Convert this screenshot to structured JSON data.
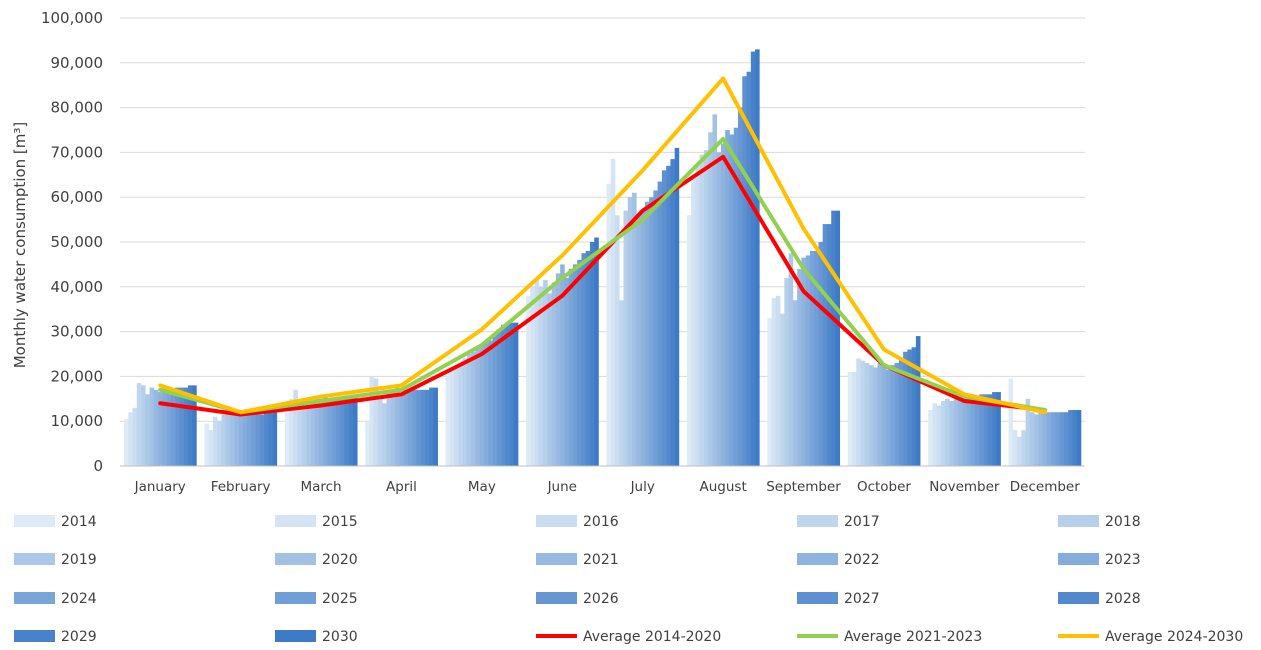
{
  "chart_data": {
    "type": "bar",
    "ylabel": "Monthly water consumption [m³]",
    "ylim": [
      0,
      100000
    ],
    "yticks": [
      "0",
      "10,000",
      "20,000",
      "30,000",
      "40,000",
      "50,000",
      "60,000",
      "70,000",
      "80,000",
      "90,000",
      "100,000"
    ],
    "grid": true,
    "legend_position": "bottom",
    "categories": [
      "January",
      "February",
      "March",
      "April",
      "May",
      "June",
      "July",
      "August",
      "September",
      "October",
      "November",
      "December"
    ],
    "bar_series": [
      {
        "name": "2014",
        "color": "#DEEBF7",
        "values": [
          10500,
          9500,
          12000,
          10200,
          21000,
          38000,
          63000,
          56000,
          33000,
          21000,
          12500,
          19500
        ]
      },
      {
        "name": "2015",
        "color": "#D4E4F4",
        "values": [
          12000,
          8000,
          15000,
          20000,
          21500,
          40000,
          68500,
          65000,
          37500,
          21000,
          14000,
          8000
        ]
      },
      {
        "name": "2016",
        "color": "#CADDF1",
        "values": [
          13000,
          11000,
          17000,
          19500,
          22000,
          42000,
          56000,
          67000,
          38000,
          24000,
          13500,
          6500
        ]
      },
      {
        "name": "2017",
        "color": "#C0D6EE",
        "values": [
          18500,
          10000,
          13000,
          15000,
          23000,
          40000,
          37000,
          69500,
          34000,
          23500,
          14500,
          8000
        ]
      },
      {
        "name": "2018",
        "color": "#B6CFEB",
        "values": [
          18000,
          11500,
          13500,
          14000,
          24000,
          41500,
          57000,
          70500,
          42000,
          23000,
          15000,
          15000
        ]
      },
      {
        "name": "2019",
        "color": "#ACC8E8",
        "values": [
          16000,
          12000,
          14000,
          16500,
          25000,
          38500,
          60000,
          74500,
          47500,
          22500,
          14500,
          12000
        ]
      },
      {
        "name": "2020",
        "color": "#A2C1E5",
        "values": [
          17500,
          12500,
          14500,
          17000,
          25500,
          41000,
          61000,
          78500,
          37000,
          22000,
          15500,
          11500
        ]
      },
      {
        "name": "2021",
        "color": "#98BAE2",
        "values": [
          17000,
          11500,
          15000,
          17500,
          26500,
          43000,
          56000,
          70000,
          44000,
          23000,
          16000,
          12000
        ]
      },
      {
        "name": "2022",
        "color": "#8EB3DF",
        "values": [
          16500,
          11500,
          15000,
          16000,
          27000,
          45000,
          57000,
          72000,
          46500,
          22500,
          15500,
          12000
        ]
      },
      {
        "name": "2023",
        "color": "#84ACDC",
        "values": [
          17500,
          12000,
          15500,
          17000,
          27500,
          42000,
          59000,
          75000,
          47000,
          21500,
          15500,
          12000
        ]
      },
      {
        "name": "2024",
        "color": "#7AA5D9",
        "values": [
          17000,
          11500,
          15000,
          17000,
          28000,
          44000,
          60000,
          74000,
          48000,
          22500,
          15500,
          12000
        ]
      },
      {
        "name": "2025",
        "color": "#709ED6",
        "values": [
          17000,
          11500,
          15000,
          17000,
          29500,
          45000,
          61500,
          75500,
          48000,
          23000,
          15500,
          12000
        ]
      },
      {
        "name": "2026",
        "color": "#6697D3",
        "values": [
          17500,
          11500,
          15000,
          17000,
          30500,
          46000,
          63500,
          80000,
          50000,
          24000,
          16000,
          12000
        ]
      },
      {
        "name": "2027",
        "color": "#5C90D0",
        "values": [
          17500,
          11500,
          15000,
          17000,
          31500,
          47500,
          66000,
          87000,
          54000,
          25500,
          16000,
          12000
        ]
      },
      {
        "name": "2028",
        "color": "#5289CD",
        "values": [
          17500,
          12000,
          15500,
          17000,
          32000,
          48000,
          67000,
          88000,
          54000,
          26000,
          16000,
          12500
        ]
      },
      {
        "name": "2029",
        "color": "#4882CA",
        "values": [
          18000,
          12000,
          15500,
          17500,
          32000,
          50000,
          68500,
          92500,
          57000,
          26500,
          16500,
          12500
        ]
      },
      {
        "name": "2030",
        "color": "#3E7BC7",
        "values": [
          18000,
          12000,
          15500,
          17500,
          32000,
          51000,
          71000,
          93000,
          57000,
          29000,
          16500,
          12500
        ]
      }
    ],
    "line_series": [
      {
        "name": "Average 2014-2020",
        "color": "#FF0000",
        "values": [
          14000,
          11500,
          13500,
          16000,
          25000,
          38000,
          57000,
          69000,
          39000,
          22500,
          14500,
          12500
        ]
      },
      {
        "name": "Average 2021-2023",
        "color": "#92D050",
        "values": [
          17000,
          12000,
          14500,
          17000,
          27000,
          42000,
          55000,
          73000,
          44000,
          22500,
          15500,
          12500
        ]
      },
      {
        "name": "Average 2024-2030",
        "color": "#FFC000",
        "values": [
          18000,
          12000,
          15500,
          18000,
          30500,
          47000,
          66000,
          86500,
          53000,
          26000,
          16000,
          12000
        ]
      }
    ]
  }
}
